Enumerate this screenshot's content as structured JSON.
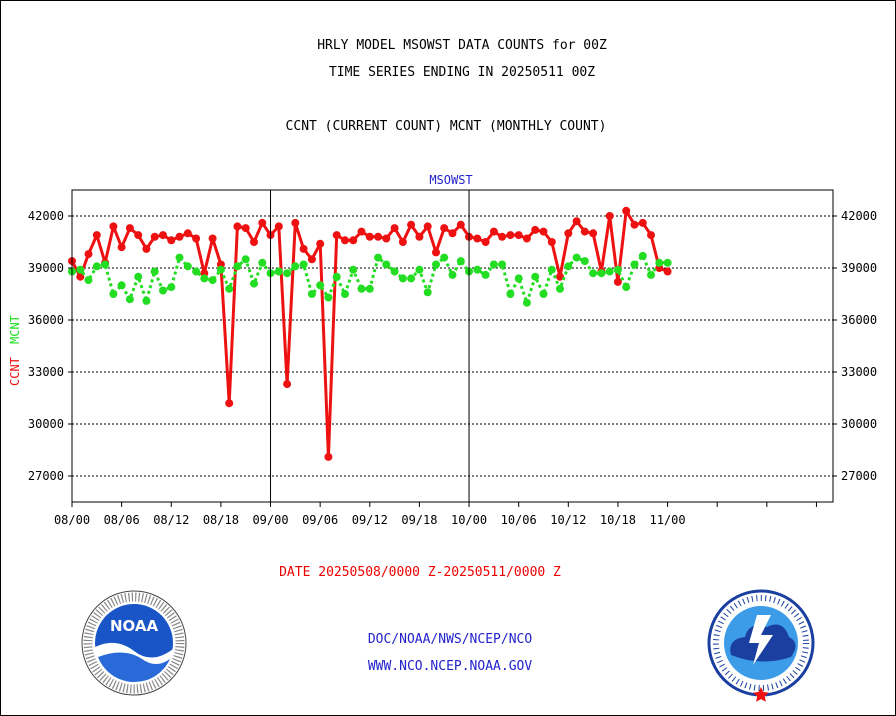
{
  "header": {
    "title_line1": "HRLY MODEL MSOWST DATA COUNTS for 00Z",
    "title_line2": "TIME SERIES ENDING IN 20250511 00Z",
    "title_line3": "CCNT (CURRENT COUNT) MCNT (MONTHLY COUNT)"
  },
  "footer": {
    "date_range": "DATE 20250508/0000 Z-20250511/0000 Z",
    "org_line": "DOC/NOAA/NWS/NCEP/NCO",
    "url_line": "WWW.NCO.NCEP.NOAA.GOV",
    "noaa_logo_text": "NOAA",
    "nws_logo_text": "NATIONAL WEATHER SERVICE"
  },
  "colors": {
    "ccnt": "#ee1111",
    "mcnt": "#22dd22",
    "plot_label": "#2222cc",
    "frame": "#000000"
  },
  "chart_data": {
    "type": "line",
    "title": "MSOWST",
    "ylabel_left_1": "CCNT",
    "ylabel_left_2": "MCNT",
    "ylim": [
      25500,
      43500
    ],
    "yticks": [
      27000,
      30000,
      33000,
      36000,
      39000,
      42000
    ],
    "ytick_labels": [
      "27000",
      "30000",
      "33000",
      "36000",
      "39000",
      "42000"
    ],
    "xlim": [
      0,
      92
    ],
    "xticks": [
      0,
      6,
      12,
      18,
      24,
      30,
      36,
      42,
      48,
      54,
      60,
      66,
      72,
      78,
      84,
      90
    ],
    "xtick_labels": [
      "08/00",
      "08/06",
      "08/12",
      "08/18",
      "09/00",
      "09/06",
      "09/12",
      "09/18",
      "10/00",
      "10/06",
      "10/12",
      "10/18",
      "11/00"
    ],
    "xtick_label_values": [
      0,
      6,
      12,
      18,
      24,
      30,
      36,
      42,
      48,
      54,
      60,
      66,
      72
    ],
    "grid": "horizontal",
    "series": [
      {
        "name": "CCNT",
        "style": "solid",
        "x": [
          0,
          1,
          2,
          3,
          4,
          5,
          6,
          7,
          8,
          9,
          10,
          11,
          12,
          13,
          14,
          15,
          16,
          17,
          18,
          19,
          20,
          21,
          22,
          23,
          24,
          25,
          26,
          27,
          28,
          29,
          30,
          31,
          32,
          33,
          34,
          35,
          36,
          37,
          38,
          39,
          40,
          41,
          42,
          43,
          44,
          45,
          46,
          47,
          48,
          49,
          50,
          51,
          52,
          53,
          54,
          55,
          56,
          57,
          58,
          59,
          60,
          61,
          62,
          63,
          64,
          65,
          66,
          67,
          68,
          69,
          70,
          71,
          72
        ],
        "values": [
          39400,
          38500,
          39800,
          40900,
          39300,
          41400,
          40200,
          41300,
          40900,
          40100,
          40800,
          40900,
          40600,
          40800,
          41000,
          40700,
          38700,
          40700,
          39200,
          31200,
          41400,
          41300,
          40500,
          41600,
          40900,
          41400,
          32300,
          41600,
          40100,
          39500,
          40400,
          28100,
          40900,
          40600,
          40600,
          41100,
          40800,
          40800,
          40700,
          41300,
          40500,
          41500,
          40800,
          41400,
          39900,
          41300,
          41000,
          41500,
          40800,
          40700,
          40500,
          41100,
          40800,
          40900,
          40900,
          40700,
          41200,
          41100,
          40500,
          38500,
          41000,
          41700,
          41100,
          41000,
          38800,
          42000,
          38200,
          42300,
          41500,
          41600,
          40900,
          39000,
          38800
        ]
      },
      {
        "name": "MCNT",
        "style": "dotted",
        "x": [
          0,
          1,
          2,
          3,
          4,
          5,
          6,
          7,
          8,
          9,
          10,
          11,
          12,
          13,
          14,
          15,
          16,
          17,
          18,
          19,
          20,
          21,
          22,
          23,
          24,
          25,
          26,
          27,
          28,
          29,
          30,
          31,
          32,
          33,
          34,
          35,
          36,
          37,
          38,
          39,
          40,
          41,
          42,
          43,
          44,
          45,
          46,
          47,
          48,
          49,
          50,
          51,
          52,
          53,
          54,
          55,
          56,
          57,
          58,
          59,
          60,
          61,
          62,
          63,
          64,
          65,
          66,
          67,
          68,
          69,
          70,
          71,
          72
        ],
        "values": [
          38800,
          38900,
          38300,
          39100,
          39200,
          37500,
          38000,
          37200,
          38500,
          37100,
          38800,
          37700,
          37900,
          39600,
          39100,
          38800,
          38400,
          38300,
          38900,
          37800,
          39100,
          39500,
          38100,
          39300,
          38700,
          38800,
          38700,
          39100,
          39200,
          37500,
          38000,
          37300,
          38500,
          37500,
          38900,
          37800,
          37800,
          39600,
          39200,
          38800,
          38400,
          38400,
          38900,
          37600,
          39200,
          39600,
          38600,
          39400,
          38800,
          38900,
          38600,
          39200,
          39200,
          37500,
          38400,
          37000,
          38500,
          37500,
          38900,
          37800,
          39100,
          39600,
          39400,
          38700,
          38700,
          38800,
          38900,
          37900,
          39200,
          39700,
          38600,
          39300,
          39300
        ]
      }
    ]
  }
}
